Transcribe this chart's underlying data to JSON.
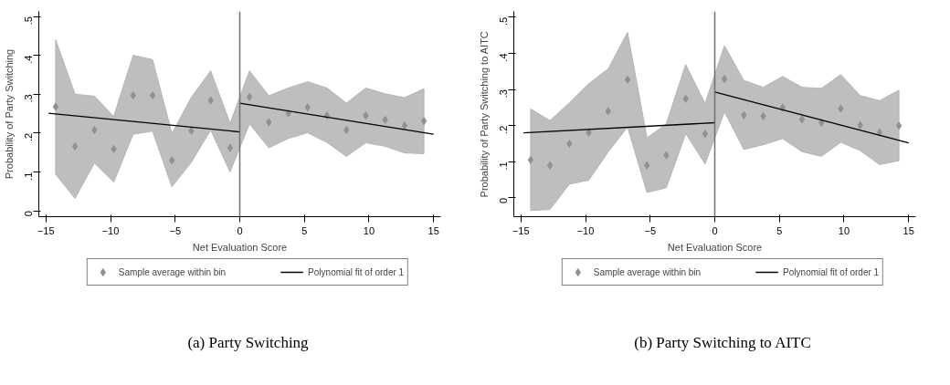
{
  "chart_data": [
    {
      "type": "scatter",
      "xlabel": "Net Evaluation Score",
      "ylabel": "Probability of Party Switching",
      "annotations": [
        "(a) Party Switching"
      ],
      "xlim": [
        -15.55,
        15.55
      ],
      "ylim": [
        -0.015,
        0.513
      ],
      "xticks": [
        -15,
        -10,
        -5,
        0,
        5,
        10,
        15
      ],
      "yticks": [
        0,
        {
          "value": 0.1,
          "label": ".1"
        },
        {
          "value": 0.2,
          "label": ".2"
        },
        {
          "value": 0.3,
          "label": ".3"
        },
        {
          "value": 0.4,
          "label": ".4"
        },
        {
          "value": 0.5,
          "label": ".5"
        }
      ],
      "grid": false,
      "legend": "bottom",
      "marker": "diamond",
      "ref_lines": [
        {
          "axis": "x",
          "value": 0,
          "color": "#707070"
        }
      ],
      "series": [
        {
          "name": "Sample average within bin",
          "color": "#919191",
          "x": [
            -14.25,
            -12.75,
            -11.25,
            -9.75,
            -8.25,
            -6.75,
            -5.25,
            -3.75,
            -2.25,
            -0.75,
            0.75,
            2.25,
            3.75,
            5.25,
            6.75,
            8.25,
            9.75,
            11.25,
            12.75,
            14.25
          ],
          "values": [
            0.268,
            0.166,
            0.208,
            0.159,
            0.297,
            0.297,
            0.13,
            0.206,
            0.284,
            0.162,
            0.293,
            0.228,
            0.251,
            0.266,
            0.245,
            0.208,
            0.245,
            0.234,
            0.219,
            0.231
          ],
          "upper": [
            0.44,
            0.3,
            0.295,
            0.243,
            0.4,
            0.389,
            0.199,
            0.292,
            0.36,
            0.225,
            0.36,
            0.296,
            0.316,
            0.332,
            0.316,
            0.277,
            0.316,
            0.301,
            0.291,
            0.314
          ],
          "lower": [
            0.094,
            0.032,
            0.123,
            0.074,
            0.197,
            0.205,
            0.062,
            0.125,
            0.208,
            0.1,
            0.224,
            0.162,
            0.186,
            0.201,
            0.176,
            0.14,
            0.175,
            0.166,
            0.149,
            0.147
          ]
        },
        {
          "name": "Polynomial fit of order 1",
          "type": "line",
          "marker": "none",
          "color": "#000000",
          "x": [
            -14.8,
            0
          ],
          "values": [
            0.251,
            0.203
          ]
        },
        {
          "type": "line",
          "marker": "none",
          "color": "#000000",
          "x": [
            0,
            15
          ],
          "values": [
            0.277,
            0.197
          ]
        }
      ]
    },
    {
      "type": "scatter",
      "xlabel": "Net Evaluation Score",
      "ylabel": "Probability of Party Switching to AITC",
      "annotations": [
        "(b) Party Switching to AITC"
      ],
      "xlim": [
        -15.55,
        15.55
      ],
      "ylim": [
        -0.052,
        0.516
      ],
      "xticks": [
        -15,
        -10,
        -5,
        0,
        5,
        10,
        15
      ],
      "yticks": [
        0,
        {
          "value": 0.1,
          "label": ".1"
        },
        {
          "value": 0.2,
          "label": ".2"
        },
        {
          "value": 0.3,
          "label": ".3"
        },
        {
          "value": 0.4,
          "label": ".4"
        },
        {
          "value": 0.5,
          "label": ".5"
        }
      ],
      "grid": false,
      "legend": "bottom",
      "marker": "diamond",
      "ref_lines": [
        {
          "axis": "x",
          "value": 0,
          "color": "#707070"
        }
      ],
      "series": [
        {
          "name": "Sample average within bin",
          "color": "#919191",
          "x": [
            -14.25,
            -12.75,
            -11.25,
            -9.75,
            -8.25,
            -6.75,
            -5.25,
            -3.75,
            -2.25,
            -0.75,
            0.75,
            2.25,
            3.75,
            5.25,
            6.75,
            8.25,
            9.75,
            11.25,
            12.75,
            14.25
          ],
          "values": [
            0.105,
            0.09,
            0.15,
            0.181,
            0.24,
            0.327,
            0.09,
            0.118,
            0.274,
            0.177,
            0.329,
            0.229,
            0.226,
            0.25,
            0.217,
            0.208,
            0.247,
            0.201,
            0.181,
            0.2
          ],
          "upper": [
            0.246,
            0.214,
            0.263,
            0.316,
            0.357,
            0.458,
            0.166,
            0.205,
            0.369,
            0.261,
            0.421,
            0.325,
            0.306,
            0.336,
            0.306,
            0.303,
            0.341,
            0.283,
            0.269,
            0.298
          ],
          "lower": [
            -0.035,
            -0.032,
            0.038,
            0.049,
            0.127,
            0.196,
            0.015,
            0.028,
            0.178,
            0.094,
            0.238,
            0.134,
            0.147,
            0.164,
            0.128,
            0.115,
            0.154,
            0.131,
            0.092,
            0.103
          ]
        },
        {
          "name": "Polynomial fit of order 1",
          "type": "line",
          "marker": "none",
          "color": "#000000",
          "x": [
            -14.8,
            0
          ],
          "values": [
            0.18,
            0.208
          ]
        },
        {
          "type": "line",
          "marker": "none",
          "color": "#000000",
          "x": [
            0,
            15
          ],
          "values": [
            0.293,
            0.152
          ]
        }
      ]
    }
  ]
}
